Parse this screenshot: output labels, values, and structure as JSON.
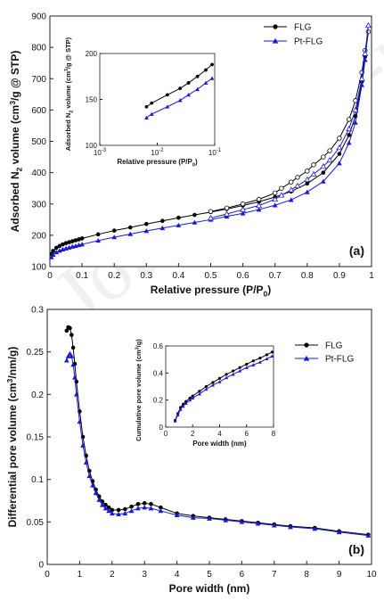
{
  "watermark": "Journal Pre-proof",
  "colors": {
    "FLG": "#000000",
    "Pt-FLG": "#1a1ad6"
  },
  "chart_data": [
    {
      "id": "a",
      "type": "line",
      "panel_label": "(a)",
      "xlabel": "Relative pressure (P/P",
      "xlabel_sub": "0",
      "xlabel_end": ")",
      "ylabel_parts": [
        "Adsorbed N",
        "2",
        " volume (cm",
        "3",
        "/g @ STP)"
      ],
      "xlim": [
        0,
        1
      ],
      "ylim": [
        100,
        900
      ],
      "xticks": [
        0,
        0.1,
        0.2,
        0.3,
        0.4,
        0.5,
        0.6,
        0.7,
        0.8,
        0.9,
        1
      ],
      "yticks": [
        100,
        200,
        300,
        400,
        500,
        600,
        700,
        800,
        900
      ],
      "legend_position": "top-right",
      "series": [
        {
          "name": "FLG",
          "marker": "circle",
          "adsorption": {
            "x": [
              0.005,
              0.01,
              0.02,
              0.03,
              0.04,
              0.05,
              0.06,
              0.07,
              0.08,
              0.09,
              0.1,
              0.15,
              0.2,
              0.25,
              0.3,
              0.35,
              0.4,
              0.45,
              0.5,
              0.55,
              0.6,
              0.65,
              0.7,
              0.75,
              0.8,
              0.85,
              0.9,
              0.93,
              0.95,
              0.97,
              0.98,
              0.99
            ],
            "y": [
              140,
              150,
              160,
              166,
              171,
              175,
              178,
              181,
              184,
              187,
              190,
              203,
              215,
              225,
              236,
              246,
              256,
              265,
              274,
              284,
              295,
              307,
              322,
              340,
              365,
              400,
              460,
              520,
              580,
              690,
              770,
              850
            ]
          },
          "desorption": {
            "x": [
              0.99,
              0.98,
              0.97,
              0.95,
              0.93,
              0.9,
              0.87,
              0.85,
              0.82,
              0.8,
              0.77,
              0.75,
              0.72,
              0.7,
              0.65,
              0.6,
              0.55,
              0.5
            ],
            "y": [
              850,
              790,
              720,
              630,
              570,
              510,
              470,
              450,
              425,
              405,
              385,
              370,
              350,
              335,
              315,
              300,
              287,
              276
            ]
          }
        },
        {
          "name": "Pt-FLG",
          "marker": "triangle",
          "adsorption": {
            "x": [
              0.005,
              0.01,
              0.02,
              0.03,
              0.04,
              0.05,
              0.06,
              0.07,
              0.08,
              0.09,
              0.1,
              0.15,
              0.2,
              0.25,
              0.3,
              0.35,
              0.4,
              0.45,
              0.5,
              0.55,
              0.6,
              0.65,
              0.7,
              0.75,
              0.8,
              0.85,
              0.9,
              0.93,
              0.95,
              0.97,
              0.98,
              0.99
            ],
            "y": [
              130,
              138,
              146,
              151,
              155,
              158,
              161,
              164,
              166,
              169,
              171,
              183,
              194,
              204,
              214,
              223,
              232,
              241,
              250,
              260,
              270,
              282,
              296,
              313,
              338,
              372,
              430,
              495,
              560,
              680,
              760,
              870
            ]
          },
          "desorption": {
            "x": [
              0.99,
              0.98,
              0.97,
              0.95,
              0.93,
              0.9,
              0.87,
              0.85,
              0.82,
              0.8,
              0.77,
              0.75,
              0.72,
              0.7,
              0.65,
              0.6,
              0.55,
              0.5
            ],
            "y": [
              870,
              780,
              700,
              600,
              540,
              480,
              440,
              420,
              395,
              378,
              358,
              345,
              328,
              315,
              295,
              282,
              268,
              255
            ]
          }
        }
      ],
      "inset": {
        "type": "line",
        "xscale": "log",
        "xlabel": "Relative pressure (P/P",
        "xlabel_sub": "0",
        "xlabel_end": ")",
        "ylabel_parts": [
          "Adsorbed N",
          "2",
          " volume (cm",
          "3",
          "/g @ STP)"
        ],
        "xlim": [
          0.001,
          0.1
        ],
        "ylim": [
          100,
          200
        ],
        "xtick_labels": [
          [
            "10",
            "-3"
          ],
          [
            "10",
            "-2"
          ],
          [
            "10",
            "-1"
          ]
        ],
        "yticks": [
          100,
          150,
          200
        ],
        "series": [
          {
            "name": "FLG",
            "x": [
              0.0065,
              0.008,
              0.015,
              0.025,
              0.035,
              0.05,
              0.07,
              0.09
            ],
            "y": [
              142,
              146,
              155,
              162,
              168,
              175,
              182,
              188
            ]
          },
          {
            "name": "Pt-FLG",
            "x": [
              0.0065,
              0.008,
              0.015,
              0.025,
              0.035,
              0.05,
              0.07,
              0.09
            ],
            "y": [
              130,
              134,
              142,
              149,
              155,
              161,
              168,
              173
            ]
          }
        ]
      }
    },
    {
      "id": "b",
      "type": "line",
      "panel_label": "(b)",
      "xlabel": "Pore width (nm)",
      "ylabel_parts": [
        "Differential pore volume (cm",
        "3",
        "/nm/g)"
      ],
      "xlim": [
        0,
        10
      ],
      "ylim": [
        0,
        0.3
      ],
      "xticks": [
        0,
        1,
        2,
        3,
        4,
        5,
        6,
        7,
        8,
        9,
        10
      ],
      "yticks": [
        0,
        0.05,
        0.1,
        0.15,
        0.2,
        0.25,
        0.3
      ],
      "legend_position": "top-right",
      "series": [
        {
          "name": "FLG",
          "marker": "circle",
          "x": [
            0.6,
            0.65,
            0.7,
            0.75,
            0.8,
            0.85,
            0.9,
            1.0,
            1.1,
            1.2,
            1.3,
            1.4,
            1.5,
            1.6,
            1.7,
            1.8,
            1.9,
            2.0,
            2.2,
            2.4,
            2.6,
            2.8,
            3.0,
            3.2,
            3.5,
            4.0,
            4.5,
            5.0,
            5.5,
            6.0,
            6.5,
            7.0,
            7.5,
            8.25,
            9.0,
            9.9
          ],
          "y": [
            0.275,
            0.279,
            0.278,
            0.27,
            0.255,
            0.236,
            0.215,
            0.18,
            0.15,
            0.128,
            0.11,
            0.098,
            0.088,
            0.08,
            0.074,
            0.07,
            0.067,
            0.064,
            0.064,
            0.065,
            0.068,
            0.071,
            0.072,
            0.071,
            0.067,
            0.06,
            0.057,
            0.055,
            0.053,
            0.051,
            0.049,
            0.047,
            0.045,
            0.043,
            0.039,
            0.035
          ]
        },
        {
          "name": "Pt-FLG",
          "marker": "triangle",
          "x": [
            0.6,
            0.65,
            0.7,
            0.75,
            0.8,
            0.85,
            0.9,
            1.0,
            1.1,
            1.2,
            1.3,
            1.4,
            1.5,
            1.6,
            1.7,
            1.8,
            1.9,
            2.0,
            2.2,
            2.4,
            2.6,
            2.8,
            3.0,
            3.2,
            3.5,
            4.0,
            4.5,
            5.0,
            5.5,
            6.0,
            6.5,
            7.0,
            7.5,
            8.25,
            9.0,
            9.9
          ],
          "y": [
            0.24,
            0.245,
            0.248,
            0.245,
            0.235,
            0.22,
            0.2,
            0.168,
            0.14,
            0.12,
            0.104,
            0.093,
            0.084,
            0.076,
            0.07,
            0.066,
            0.063,
            0.06,
            0.059,
            0.06,
            0.063,
            0.066,
            0.067,
            0.066,
            0.063,
            0.058,
            0.055,
            0.054,
            0.052,
            0.05,
            0.048,
            0.046,
            0.044,
            0.042,
            0.038,
            0.034
          ]
        }
      ],
      "inset": {
        "type": "line",
        "xlabel": "Pore width (nm)",
        "ylabel_parts": [
          "Cumulative pore volume (cm",
          "3",
          "/g)"
        ],
        "xlim": [
          0,
          8
        ],
        "ylim": [
          0,
          0.6
        ],
        "xticks": [
          0,
          2,
          4,
          6,
          8
        ],
        "yticks": [
          0,
          0.2,
          0.4,
          0.6
        ],
        "series": [
          {
            "name": "FLG",
            "x": [
              0.7,
              0.9,
              1.1,
              1.3,
              1.5,
              1.8,
              2.0,
              2.5,
              3.0,
              3.5,
              4.0,
              4.5,
              5.0,
              5.5,
              6.0,
              6.5,
              7.0,
              7.5,
              7.9
            ],
            "y": [
              0.05,
              0.1,
              0.145,
              0.17,
              0.19,
              0.215,
              0.23,
              0.265,
              0.3,
              0.33,
              0.36,
              0.39,
              0.415,
              0.44,
              0.465,
              0.49,
              0.51,
              0.535,
              0.555
            ]
          },
          {
            "name": "Pt-FLG",
            "x": [
              0.7,
              0.9,
              1.1,
              1.3,
              1.5,
              1.8,
              2.0,
              2.5,
              3.0,
              3.5,
              4.0,
              4.5,
              5.0,
              5.5,
              6.0,
              6.5,
              7.0,
              7.5,
              7.9
            ],
            "y": [
              0.045,
              0.09,
              0.13,
              0.155,
              0.175,
              0.2,
              0.215,
              0.245,
              0.28,
              0.31,
              0.335,
              0.365,
              0.39,
              0.415,
              0.44,
              0.46,
              0.48,
              0.505,
              0.525
            ]
          }
        ]
      }
    }
  ]
}
